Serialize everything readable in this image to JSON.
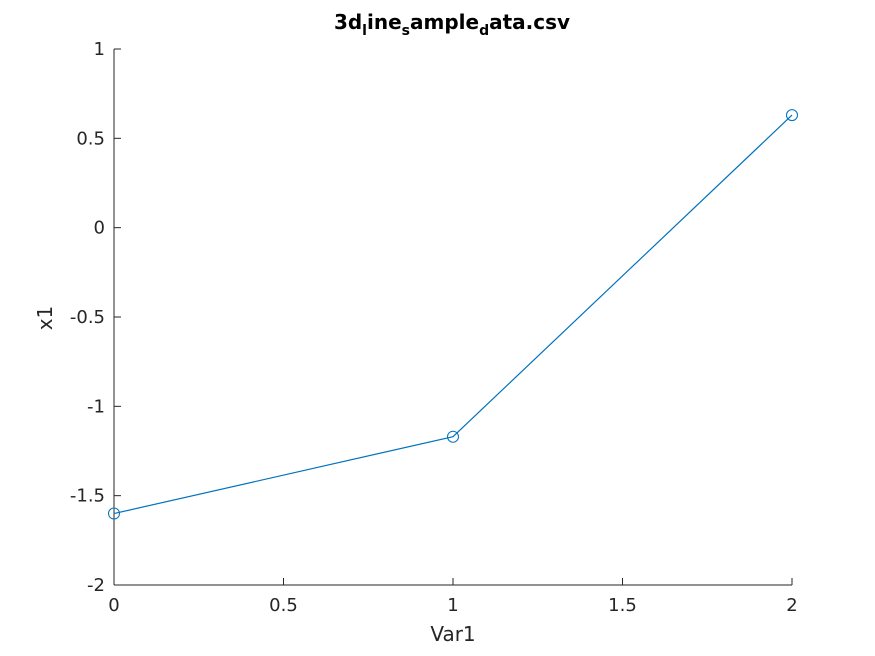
{
  "chart_data": {
    "type": "line",
    "title": {
      "parts": [
        {
          "text": "3d",
          "sub": false
        },
        {
          "text": "l",
          "sub": true
        },
        {
          "text": "ine",
          "sub": false
        },
        {
          "text": "s",
          "sub": true
        },
        {
          "text": "ample",
          "sub": false
        },
        {
          "text": "d",
          "sub": true
        },
        {
          "text": "ata.csv",
          "sub": false
        }
      ]
    },
    "xlabel": "Var1",
    "ylabel": "x1",
    "xlim": [
      0,
      2
    ],
    "ylim": [
      -2,
      1
    ],
    "xticks": [
      0,
      0.5,
      1,
      1.5,
      2
    ],
    "xtick_labels": [
      "0",
      "0.5",
      "1",
      "1.5",
      "2"
    ],
    "yticks": [
      -2,
      -1.5,
      -1,
      -0.5,
      0,
      0.5,
      1
    ],
    "ytick_labels": [
      "-2",
      "-1.5",
      "-1",
      "-0.5",
      "0",
      "0.5",
      "1"
    ],
    "grid": false,
    "legend": false,
    "series": [
      {
        "x": [
          0,
          1,
          2
        ],
        "y": [
          -1.6,
          -1.17,
          0.63
        ],
        "color": "#0072BD",
        "marker": "circle"
      }
    ]
  }
}
